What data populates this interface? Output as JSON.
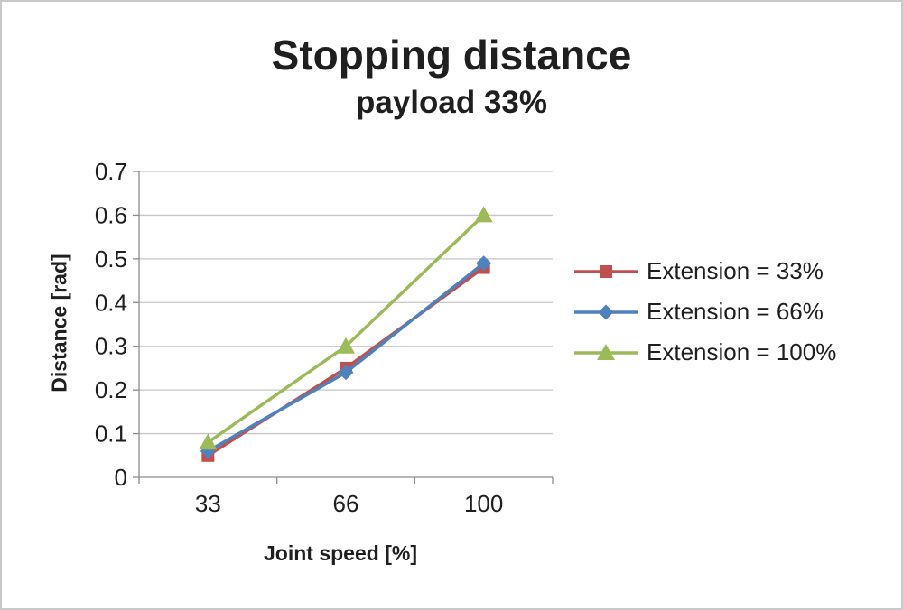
{
  "chart_data": {
    "type": "line",
    "title": "Stopping distance",
    "subtitle": "payload 33%",
    "xlabel": "Joint speed [%]",
    "ylabel": "Distance [rad]",
    "categories": [
      "33",
      "66",
      "100"
    ],
    "series": [
      {
        "name": "Extension = 33%",
        "marker": "square",
        "color": "#c0504d",
        "values": [
          0.05,
          0.25,
          0.48
        ]
      },
      {
        "name": "Extension = 66%",
        "marker": "diamond",
        "color": "#4f81bd",
        "values": [
          0.06,
          0.24,
          0.49
        ]
      },
      {
        "name": "Extension = 100%",
        "marker": "triangle",
        "color": "#9bbb59",
        "values": [
          0.08,
          0.3,
          0.6
        ]
      }
    ],
    "ylim": [
      0,
      0.7
    ],
    "yticks": [
      0,
      0.1,
      0.2,
      0.3,
      0.4,
      0.5,
      0.6,
      0.7
    ],
    "grid": true,
    "legend_position": "right",
    "axis_color": "#8c8c8c",
    "grid_color": "#c6c6c6",
    "text_color": "#1f1f1f"
  }
}
